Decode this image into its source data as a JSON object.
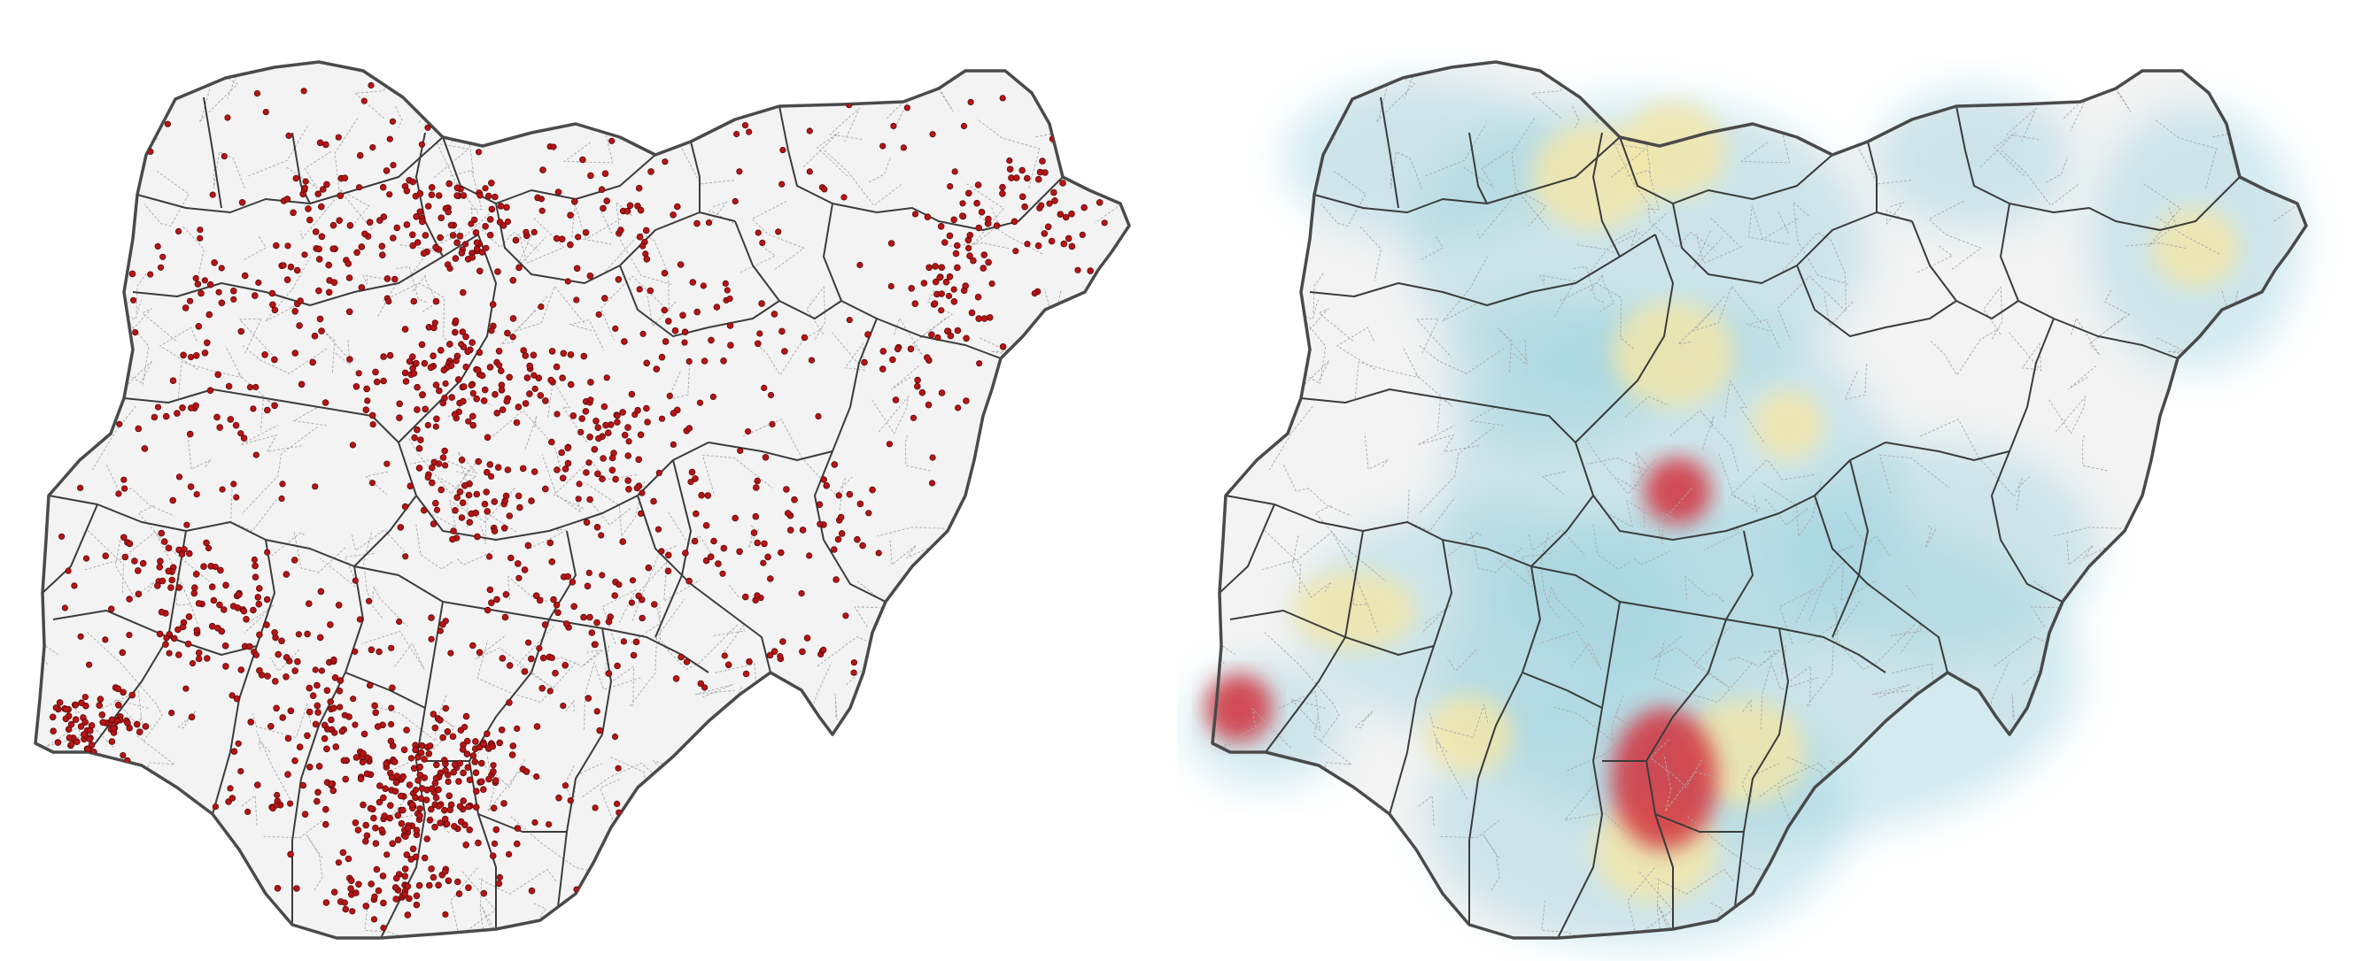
{
  "figure": {
    "panels": [
      {
        "id": "points",
        "kind": "point-map",
        "region": "Nigeria",
        "legend": ""
      },
      {
        "id": "heat",
        "kind": "density-heatmap",
        "region": "Nigeria",
        "legend": ""
      }
    ]
  },
  "colors": {
    "land_fill": "#f3f3f3",
    "outer_border": "#4a4a4a",
    "state_border": "#3c3c3c",
    "lga_border": "#a9a9a9",
    "point_fill": "#b81414",
    "point_stroke": "#5a0a0a",
    "heat_low": "#9fd3de",
    "heat_mid": "#f4e7a7",
    "heat_high": "#d2323c"
  },
  "icons": {
    "point_marker": "filled-circle"
  },
  "heat_scale": {
    "stops": [
      "low",
      "medium",
      "high"
    ]
  }
}
